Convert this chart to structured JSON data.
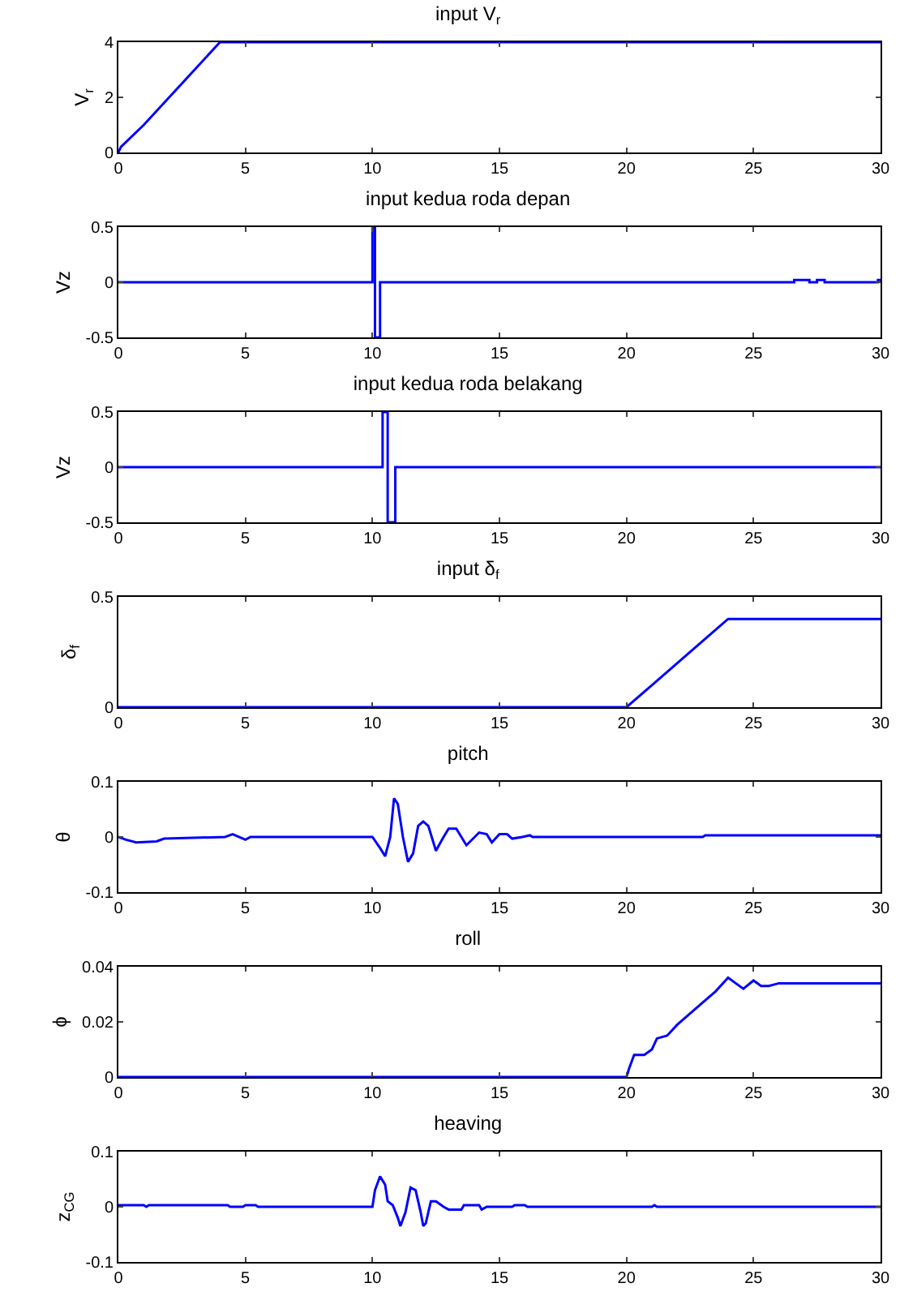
{
  "chart_data": [
    {
      "type": "line",
      "title": "input V$_{r}$",
      "ylabel": "V$_{r}$",
      "color": "#0000ff",
      "x": [
        0,
        0.1,
        1,
        2,
        3,
        4,
        30
      ],
      "values": [
        0,
        0.2,
        1,
        2,
        3,
        4,
        4
      ],
      "xlim": [
        0,
        30
      ],
      "ylim": [
        0,
        4
      ],
      "xticks": [
        0,
        5,
        10,
        15,
        20,
        25,
        30
      ],
      "yticks": [
        0,
        2,
        4
      ]
    },
    {
      "type": "line",
      "title": "input kedua roda depan",
      "ylabel": "Vz",
      "color": "#0000ff",
      "x": [
        0,
        10,
        10,
        10.1,
        10.1,
        10.3,
        10.3,
        26.6,
        26.6,
        27.2,
        27.2,
        27.5,
        27.5,
        27.8,
        27.8,
        28.1,
        28.1,
        29.9,
        29.9,
        30
      ],
      "values": [
        0,
        0,
        0.5,
        0.5,
        -0.5,
        -0.5,
        0,
        0,
        0.02,
        0.02,
        0,
        0,
        0.02,
        0.02,
        0,
        0,
        0,
        0,
        0.02,
        0.02
      ],
      "xlim": [
        0,
        30
      ],
      "ylim": [
        -0.5,
        0.5
      ],
      "xticks": [
        0,
        5,
        10,
        15,
        20,
        25,
        30
      ],
      "yticks": [
        -0.5,
        0,
        0.5
      ]
    },
    {
      "type": "line",
      "title": "input kedua roda belakang",
      "ylabel": "Vz",
      "color": "#0000ff",
      "x": [
        0,
        10.4,
        10.4,
        10.6,
        10.6,
        10.9,
        10.9,
        30
      ],
      "values": [
        0,
        0,
        0.5,
        0.5,
        -0.5,
        -0.5,
        0,
        0
      ],
      "xlim": [
        0,
        30
      ],
      "ylim": [
        -0.5,
        0.5
      ],
      "xticks": [
        0,
        5,
        10,
        15,
        20,
        25,
        30
      ],
      "yticks": [
        -0.5,
        0,
        0.5
      ]
    },
    {
      "type": "line",
      "title": "input δ$_{f}$",
      "ylabel": "δ$_{f}$",
      "color": "#0000ff",
      "x": [
        0,
        20,
        21,
        22,
        23,
        24,
        30
      ],
      "values": [
        0,
        0,
        0.1,
        0.2,
        0.3,
        0.4,
        0.4
      ],
      "xlim": [
        0,
        30
      ],
      "ylim": [
        0,
        0.5
      ],
      "xticks": [
        0,
        5,
        10,
        15,
        20,
        25,
        30
      ],
      "yticks": [
        0,
        0.5
      ]
    },
    {
      "type": "line",
      "title": "pitch",
      "ylabel": "θ",
      "color": "#0000ff",
      "x": [
        0,
        0.3,
        0.7,
        1.5,
        1.8,
        4.2,
        4.5,
        5,
        5.2,
        10,
        10.3,
        10.5,
        10.7,
        10.85,
        11,
        11.2,
        11.4,
        11.6,
        11.8,
        12,
        12.2,
        12.5,
        12.8,
        13,
        13.3,
        13.7,
        14.2,
        14.5,
        14.7,
        15,
        15.3,
        15.5,
        15.9,
        16.2,
        16.3,
        23,
        23.1,
        30
      ],
      "values": [
        0,
        -0.005,
        -0.01,
        -0.008,
        -0.003,
        0,
        0.005,
        -0.005,
        0,
        0,
        -0.02,
        -0.035,
        0,
        0.07,
        0.06,
        0,
        -0.045,
        -0.03,
        0.02,
        0.028,
        0.02,
        -0.025,
        0,
        0.015,
        0.015,
        -0.015,
        0.008,
        0.005,
        -0.01,
        0.005,
        0.005,
        -0.003,
        0,
        0.003,
        0,
        0,
        0.003,
        0.003
      ],
      "xlim": [
        0,
        30
      ],
      "ylim": [
        -0.1,
        0.1
      ],
      "xticks": [
        0,
        5,
        10,
        15,
        20,
        25,
        30
      ],
      "yticks": [
        -0.1,
        0,
        0.1
      ]
    },
    {
      "type": "line",
      "title": "roll",
      "ylabel": "ϕ",
      "color": "#0000ff",
      "x": [
        0,
        20,
        20.1,
        20.3,
        20.7,
        21,
        21.2,
        21.6,
        22,
        23,
        23.5,
        24,
        24.3,
        24.6,
        25,
        25.3,
        25.6,
        26,
        30
      ],
      "values": [
        0,
        0,
        0.003,
        0.008,
        0.008,
        0.01,
        0.014,
        0.015,
        0.019,
        0.027,
        0.031,
        0.036,
        0.034,
        0.032,
        0.035,
        0.033,
        0.033,
        0.034,
        0.034
      ],
      "xlim": [
        0,
        30
      ],
      "ylim": [
        0,
        0.04
      ],
      "xticks": [
        0,
        5,
        10,
        15,
        20,
        25,
        30
      ],
      "yticks": [
        0,
        0.02,
        0.04
      ]
    },
    {
      "type": "line",
      "title": "heaving",
      "ylabel": "z$_{CG}$",
      "color": "#0000ff",
      "x": [
        0,
        1,
        1.1,
        1.2,
        4.3,
        4.4,
        4.9,
        5,
        5.4,
        5.5,
        10,
        10.1,
        10.3,
        10.5,
        10.6,
        10.8,
        11,
        11.1,
        11.3,
        11.5,
        11.7,
        11.9,
        12,
        12.1,
        12.3,
        12.5,
        12.8,
        13,
        13.5,
        13.6,
        14.2,
        14.3,
        14.5,
        15.5,
        15.6,
        16,
        16.1,
        21,
        21.1,
        21.2,
        30
      ],
      "values": [
        0.003,
        0.003,
        0,
        0.003,
        0.003,
        0,
        0,
        0.003,
        0.003,
        0,
        0,
        0.03,
        0.055,
        0.04,
        0.01,
        0.003,
        -0.02,
        -0.035,
        -0.01,
        0.035,
        0.03,
        -0.01,
        -0.035,
        -0.03,
        0.01,
        0.01,
        0,
        -0.005,
        -0.005,
        0.003,
        0.003,
        -0.005,
        0,
        0,
        0.003,
        0.003,
        0,
        0,
        0.003,
        0,
        0
      ],
      "xlim": [
        0,
        30
      ],
      "ylim": [
        -0.1,
        0.1
      ],
      "xticks": [
        0,
        5,
        10,
        15,
        20,
        25,
        30
      ],
      "yticks": [
        -0.1,
        0,
        0.1
      ]
    }
  ]
}
